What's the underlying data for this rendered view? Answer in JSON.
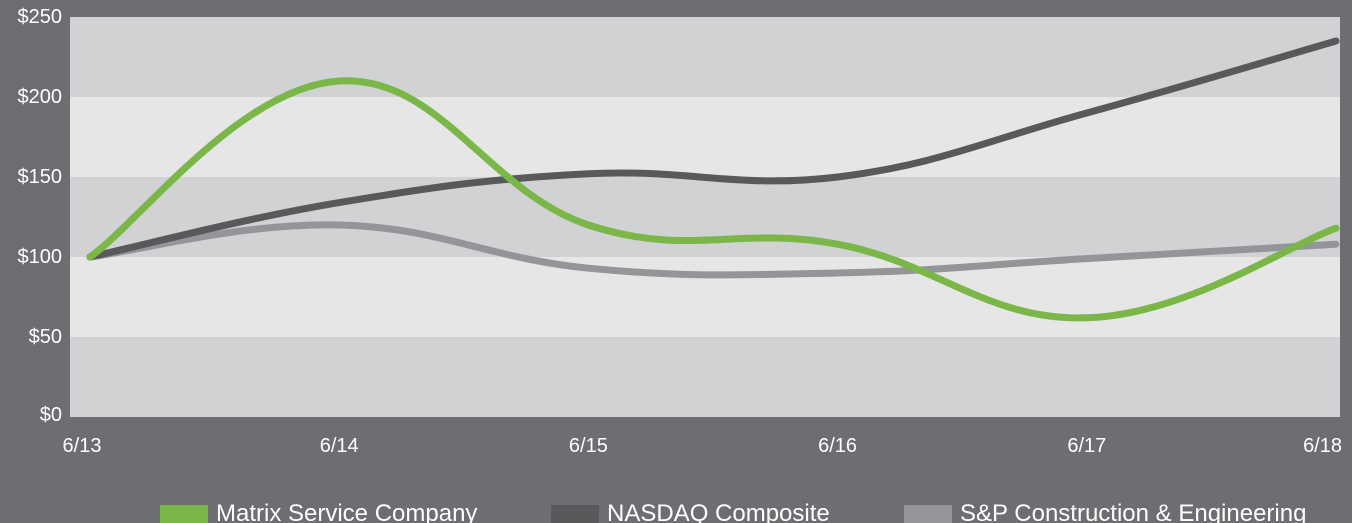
{
  "chart_data": {
    "type": "line",
    "title": "",
    "xlabel": "",
    "ylabel": "",
    "x": [
      "6/13",
      "6/14",
      "6/15",
      "6/16",
      "6/17",
      "6/18"
    ],
    "y_ticks": [
      "$0",
      "$50",
      "$100",
      "$150",
      "$200",
      "$250"
    ],
    "ylim": [
      0,
      250
    ],
    "grid": "alternating horizontal bands",
    "legend_position": "bottom",
    "series": [
      {
        "name": "Matrix Service Company",
        "color": "#7ab648",
        "values": [
          100,
          210,
          120,
          108,
          62,
          118
        ]
      },
      {
        "name": "NASDAQ Composite",
        "color": "#58595b",
        "values": [
          100,
          134,
          152,
          150,
          190,
          235
        ]
      },
      {
        "name": "S&P Construction & Engineering",
        "color": "#939598",
        "values": [
          100,
          120,
          93,
          90,
          99,
          108
        ]
      }
    ],
    "colors": {
      "background": "#6d6e71",
      "band_dark": "#d1d2d4",
      "band_light": "#e6e6e6"
    }
  }
}
